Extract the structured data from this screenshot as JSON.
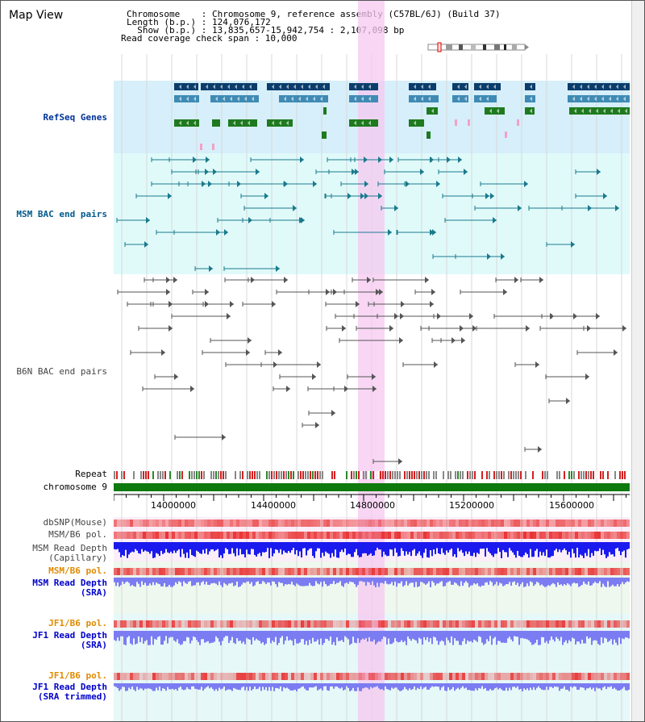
{
  "header": {
    "title": "Map View",
    "info_lines": [
      "Chromosome    : Chromosome 9, reference assembly (C57BL/6J) (Build 37)",
      "Length (b.p.) : 124,076,172",
      "  Show (b.p.) : 13,835,657-15,942,754 : 2,107,098 bp",
      "Read coverage check span : 10,000"
    ]
  },
  "tracks": {
    "refseq": "RefSeq Genes",
    "msm_bac": "MSM BAC end pairs",
    "b6n_bac": "B6N BAC end pairs",
    "repeat": "Repeat",
    "chromosome": "chromosome 9",
    "dbsnp": "dbSNP(Mouse)",
    "msm_b6_pol_1": "MSM/B6 pol.",
    "msm_depth_cap_1": "MSM Read Depth",
    "msm_depth_cap_2": "(Capillary)",
    "msm_b6_pol_2": "MSM/B6 pol.",
    "msm_depth_sra_1": "MSM Read Depth",
    "msm_depth_sra_2": "(SRA)",
    "jf1_pol_1": "JF1/B6 pol.",
    "jf1_depth_sra_1": "JF1 Read Depth",
    "jf1_depth_sra_2": "(SRA)",
    "jf1_pol_2": "JF1/B6 pol.",
    "jf1_depth_trim_1": "JF1 Read Depth",
    "jf1_depth_trim_2": "(SRA trimmed)"
  },
  "axis": {
    "ticks": [
      "14000000",
      "14400000",
      "14800000",
      "15200000",
      "15600000"
    ]
  },
  "colors": {
    "refseq_bg": "#d6effa",
    "msm_bg": "#e0fafa",
    "highlight": "#f6c8f0",
    "gene_dark": "#0a3d6b",
    "gene_mid": "#3f8bb5",
    "gene_green": "#1f7a1f",
    "msm_line": "#1a7a8c",
    "b6n_line": "#555555",
    "chromosome": "#0e7a0e",
    "snp": "#f07a7a",
    "pol": "#e83030",
    "depth_cap": "#1a1aee",
    "depth_sra": "#7c7cf2"
  }
}
